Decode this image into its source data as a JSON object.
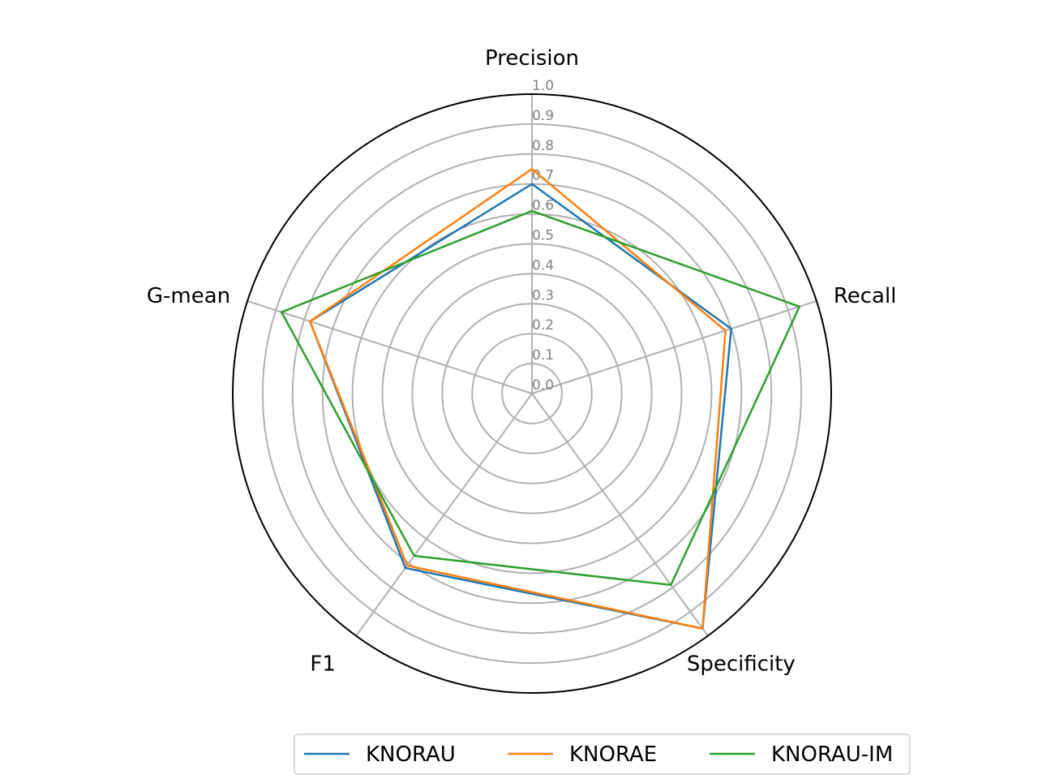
{
  "chart_data": {
    "type": "radar",
    "axes": [
      "Precision",
      "Recall",
      "Specificity",
      "F1",
      "G-mean"
    ],
    "rlim": [
      0,
      1.0
    ],
    "ticks": [
      "0.0",
      "0.1",
      "0.2",
      "0.3",
      "0.4",
      "0.5",
      "0.6",
      "0.7",
      "0.8",
      "0.9",
      "1.0"
    ],
    "grid": true,
    "legend_position": "bottom",
    "series": [
      {
        "name": "KNORAU",
        "color": "#1f77b4",
        "values": [
          0.7,
          0.7,
          0.97,
          0.72,
          0.78
        ]
      },
      {
        "name": "KNORAE",
        "color": "#ff7f0e",
        "values": [
          0.75,
          0.68,
          0.97,
          0.71,
          0.78
        ]
      },
      {
        "name": "KNORAU-IM",
        "color": "#2ca02c",
        "values": [
          0.61,
          0.94,
          0.79,
          0.67,
          0.88
        ]
      }
    ]
  }
}
